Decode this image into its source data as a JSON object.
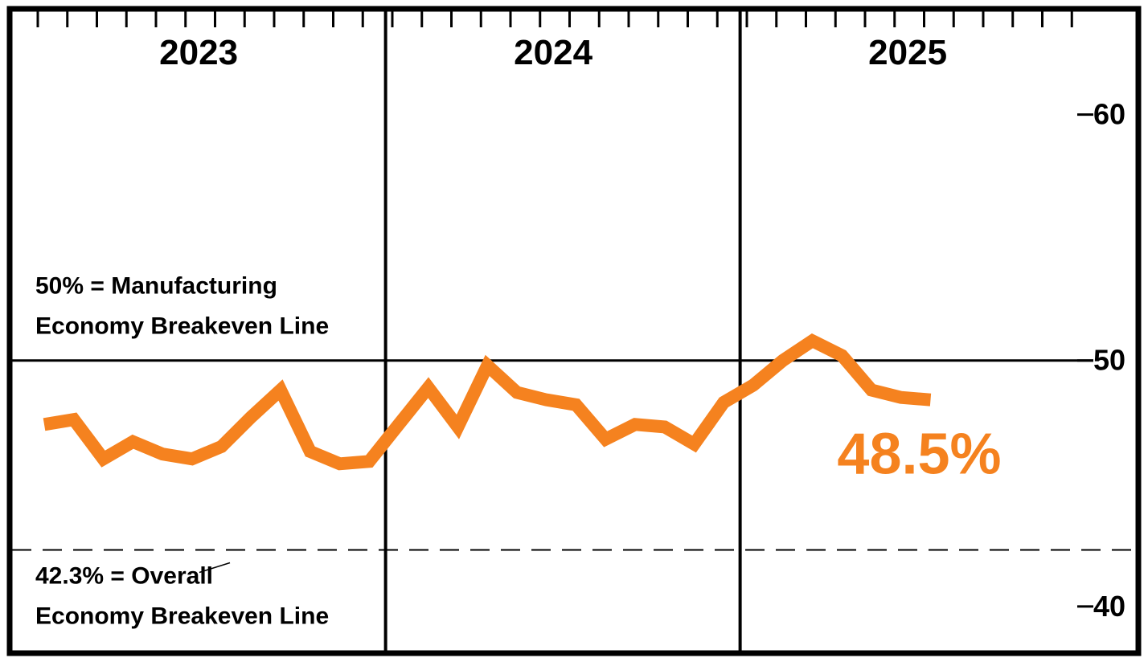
{
  "chart_data": {
    "type": "line",
    "years": [
      "2023",
      "2024",
      "2025"
    ],
    "yticks": [
      {
        "value": 60,
        "label": "60"
      },
      {
        "value": 50,
        "label": "50"
      },
      {
        "value": 40,
        "label": "40"
      }
    ],
    "ylim": [
      38.2,
      64.2
    ],
    "x_start": "2023-01",
    "x_end": "2025-12",
    "grid": "vertical year dividers only",
    "reference_lines": [
      {
        "value": 50,
        "style": "solid",
        "label_lines": [
          "50% = Manufacturing",
          "Economy Breakeven Line"
        ]
      },
      {
        "value": 42.3,
        "style": "dashed",
        "label_lines": [
          "42.3% = Overall",
          "Economy Breakeven Line"
        ]
      }
    ],
    "series": [
      {
        "color": "#F5821F",
        "points": [
          {
            "x": "2023-01",
            "y": 47.4
          },
          {
            "x": "2023-02",
            "y": 47.6
          },
          {
            "x": "2023-03",
            "y": 46.0
          },
          {
            "x": "2023-04",
            "y": 46.7
          },
          {
            "x": "2023-05",
            "y": 46.2
          },
          {
            "x": "2023-06",
            "y": 46.0
          },
          {
            "x": "2023-07",
            "y": 46.5
          },
          {
            "x": "2023-08",
            "y": 47.7
          },
          {
            "x": "2023-09",
            "y": 48.8
          },
          {
            "x": "2023-10",
            "y": 46.3
          },
          {
            "x": "2023-11",
            "y": 45.8
          },
          {
            "x": "2023-12",
            "y": 45.9
          },
          {
            "x": "2024-01",
            "y": 47.4
          },
          {
            "x": "2024-02",
            "y": 48.9
          },
          {
            "x": "2024-03",
            "y": 47.3
          },
          {
            "x": "2024-04",
            "y": 49.8
          },
          {
            "x": "2024-05",
            "y": 48.7
          },
          {
            "x": "2024-06",
            "y": 48.4
          },
          {
            "x": "2024-07",
            "y": 48.2
          },
          {
            "x": "2024-08",
            "y": 46.8
          },
          {
            "x": "2024-09",
            "y": 47.4
          },
          {
            "x": "2024-10",
            "y": 47.3
          },
          {
            "x": "2024-11",
            "y": 46.6
          },
          {
            "x": "2024-12",
            "y": 48.3
          },
          {
            "x": "2025-01",
            "y": 49.0
          },
          {
            "x": "2025-02",
            "y": 50.0
          },
          {
            "x": "2025-03",
            "y": 50.8
          },
          {
            "x": "2025-04",
            "y": 50.2
          },
          {
            "x": "2025-05",
            "y": 48.8
          },
          {
            "x": "2025-06",
            "y": 48.5
          },
          {
            "x": "2025-07",
            "y": 48.4
          }
        ]
      }
    ],
    "callout": {
      "label": "48.5%",
      "color": "#F5821F"
    }
  }
}
